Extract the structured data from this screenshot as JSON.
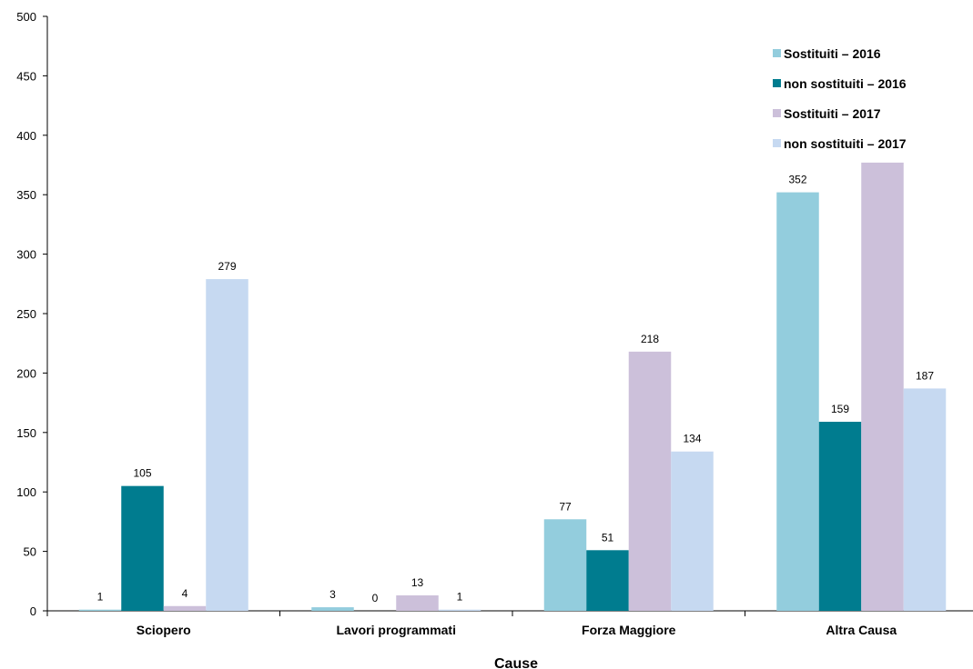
{
  "chart_data": {
    "type": "bar",
    "title": "",
    "xlabel": "Cause",
    "ylabel": "",
    "ylim": [
      0,
      500
    ],
    "yticks": [
      0,
      50,
      100,
      150,
      200,
      250,
      300,
      350,
      400,
      450,
      500
    ],
    "grid": false,
    "legend_position": "top-right",
    "categories": [
      "Sciopero",
      "Lavori programmati",
      "Forza Maggiore",
      "Altra Causa"
    ],
    "series": [
      {
        "name": "Sostituiti – 2016",
        "color": "#93cddd",
        "values": [
          1,
          3,
          77,
          352
        ],
        "labels": [
          "1",
          "3",
          "77",
          "352"
        ]
      },
      {
        "name": "non sostituiti – 2016",
        "color": "#007c8f",
        "values": [
          105,
          0,
          51,
          159
        ],
        "labels": [
          "105",
          "0",
          "51",
          "159"
        ]
      },
      {
        "name": "Sostituiti – 2017",
        "color": "#ccc0da",
        "values": [
          4,
          13,
          218,
          377
        ],
        "labels": [
          "4",
          "13",
          "218",
          ""
        ]
      },
      {
        "name": "non sostituiti – 2017",
        "color": "#c6d9f1",
        "values": [
          279,
          1,
          134,
          187
        ],
        "labels": [
          "279",
          "1",
          "134",
          "187"
        ]
      }
    ]
  }
}
